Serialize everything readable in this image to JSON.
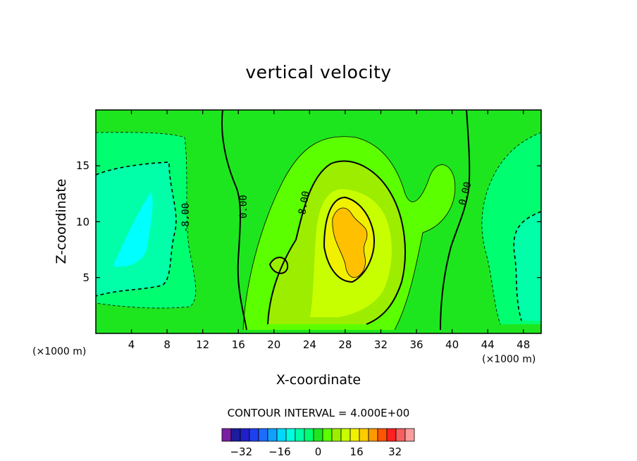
{
  "chart_data": {
    "type": "heatmap",
    "title": "vertical velocity",
    "xlabel": "X-coordinate",
    "ylabel": "Z-coordinate",
    "x_unit_left": "(×1000 m)",
    "x_unit_right": "(×1000 m)",
    "xlim": [
      0,
      50
    ],
    "ylim": [
      0,
      20
    ],
    "x_ticks": [
      "4",
      "8",
      "12",
      "16",
      "20",
      "24",
      "28",
      "32",
      "36",
      "40",
      "44",
      "48"
    ],
    "y_ticks": [
      "5",
      "10",
      "15"
    ],
    "contour_interval_text": "CONTOUR INTERVAL = 4.000E+00",
    "contour_labels": [
      {
        "text": "-8.00",
        "x": 10,
        "z": 9.5
      },
      {
        "text": "0.00",
        "x": 16.5,
        "z": 11
      },
      {
        "text": "8.00",
        "x": 23.5,
        "z": 12
      },
      {
        "text": "0.00",
        "x": 41.5,
        "z": 12.5
      }
    ],
    "colorbar": {
      "tick_labels": [
        "−32",
        "−16",
        "0",
        "16",
        "32"
      ],
      "tick_values": [
        -32,
        -16,
        0,
        16,
        32
      ],
      "levels": [
        -40,
        -36,
        -32,
        -28,
        -24,
        -20,
        -16,
        -12,
        -8,
        -4,
        0,
        4,
        8,
        12,
        16,
        20,
        24,
        28,
        32,
        36,
        40
      ],
      "colors": [
        "#7a1fa2",
        "#1c1c9c",
        "#2020c8",
        "#1f3ff0",
        "#1e6cff",
        "#12a0ff",
        "#00d8ff",
        "#00ffe0",
        "#00ffa8",
        "#00ff70",
        "#1ee61e",
        "#5cff00",
        "#9ced00",
        "#c8ff00",
        "#f0f000",
        "#ffcc00",
        "#ff9900",
        "#ff5500",
        "#ff2020",
        "#f56060",
        "#fa9c9c"
      ]
    },
    "fill_regions": [
      {
        "value": 0,
        "color": "#1ee61e",
        "note": "background ~0"
      },
      {
        "value": -4,
        "color": "#00ff70"
      },
      {
        "value": -8,
        "color": "#00ffa8"
      },
      {
        "value": -12,
        "color": "#00ffe0"
      },
      {
        "value": -16,
        "color": "#00ffff"
      },
      {
        "value": 4,
        "color": "#5cff00"
      },
      {
        "value": 8,
        "color": "#9ced00"
      },
      {
        "value": 12,
        "color": "#c8ff00"
      },
      {
        "value": 16,
        "color": "#f0f000"
      },
      {
        "value": 20,
        "color": "#ffc000"
      }
    ]
  }
}
